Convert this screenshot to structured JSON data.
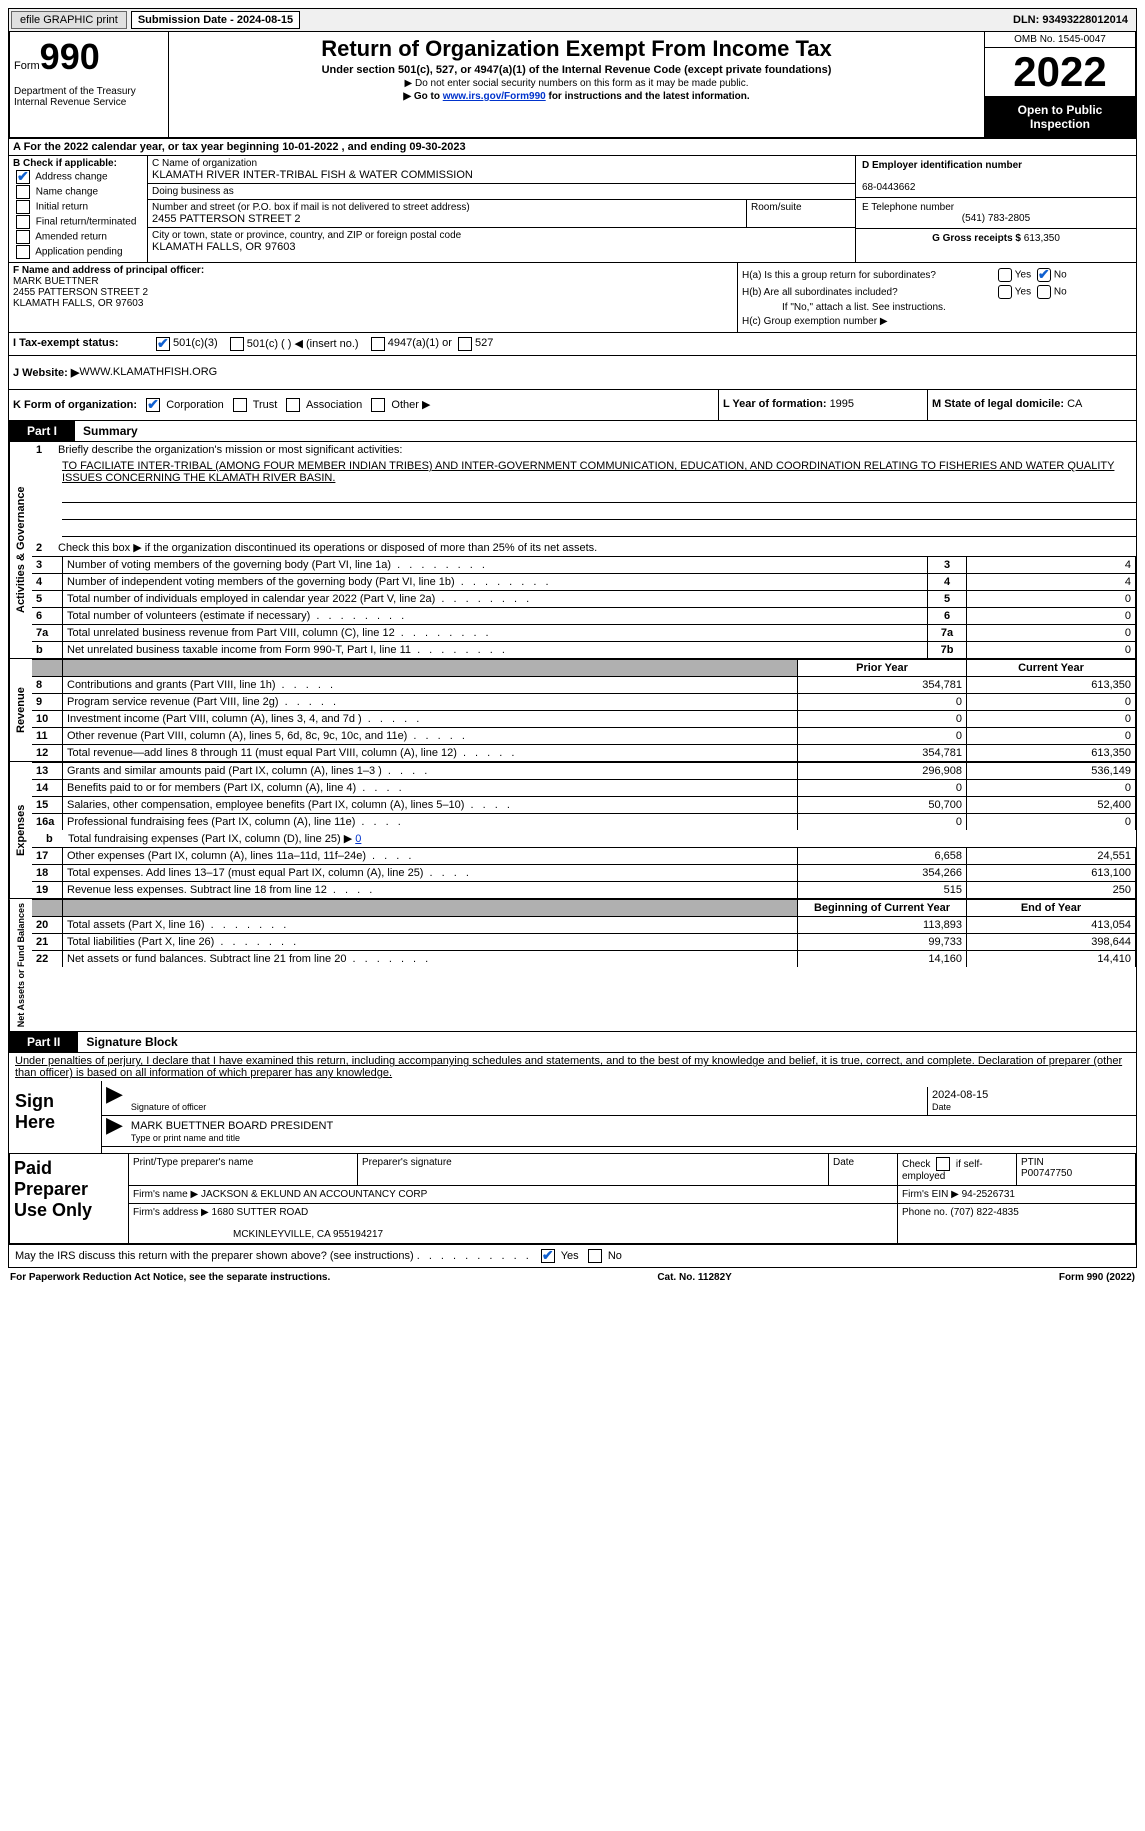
{
  "topbar": {
    "efile_label": "efile GRAPHIC print",
    "submission_label": "Submission Date - 2024-08-15",
    "dln": "DLN: 93493228012014"
  },
  "header": {
    "form_word": "Form",
    "form_number": "990",
    "dept": "Department of the Treasury Internal Revenue Service",
    "title": "Return of Organization Exempt From Income Tax",
    "sub1": "Under section 501(c), 527, or 4947(a)(1) of the Internal Revenue Code (except private foundations)",
    "sub2": "▶ Do not enter social security numbers on this form as it may be made public.",
    "sub3_pre": "▶ Go to ",
    "sub3_link": "www.irs.gov/Form990",
    "sub3_post": " for instructions and the latest information.",
    "omb": "OMB No. 1545-0047",
    "year": "2022",
    "open": "Open to Public Inspection"
  },
  "row_a": "A For the 2022 calendar year, or tax year beginning 10-01-2022     , and ending 09-30-2023",
  "section_b": {
    "b_label": "B Check if applicable:",
    "checks": {
      "addr": "Address change",
      "name": "Name change",
      "init": "Initial return",
      "final": "Final return/terminated",
      "amend": "Amended return",
      "app": "Application pending"
    },
    "c_name_label": "C Name of organization",
    "c_name": "KLAMATH RIVER INTER-TRIBAL FISH & WATER COMMISSION",
    "dba_label": "Doing business as",
    "dba": "",
    "addr_label": "Number and street (or P.O. box if mail is not delivered to street address)",
    "addr": "2455 PATTERSON STREET 2",
    "room_label": "Room/suite",
    "city_label": "City or town, state or province, country, and ZIP or foreign postal code",
    "city": "KLAMATH FALLS, OR  97603",
    "d_label": "D Employer identification number",
    "d_val": "68-0443662",
    "e_label": "E Telephone number",
    "e_val": "(541) 783-2805",
    "g_label": "G Gross receipts $",
    "g_val": "613,350"
  },
  "section_f": {
    "f_label": "F  Name and address of principal officer:",
    "f_name": "MARK BUETTNER",
    "f_addr1": "2455 PATTERSON STREET 2",
    "f_addr2": "KLAMATH FALLS, OR  97603",
    "ha": "H(a)  Is this a group return for subordinates?",
    "hb": "H(b)  Are all subordinates included?",
    "hb_note": "If \"No,\" attach a list. See instructions.",
    "hc": "H(c)  Group exemption number ▶",
    "yes": "Yes",
    "no": "No"
  },
  "row_i": {
    "label": "I    Tax-exempt status:",
    "o1": "501(c)(3)",
    "o2": "501(c) (  ) ◀ (insert no.)",
    "o3": "4947(a)(1) or",
    "o4": "527"
  },
  "row_j": {
    "label": "J   Website: ▶ ",
    "val": "WWW.KLAMATHFISH.ORG"
  },
  "row_k": {
    "k_label": "K Form of organization:",
    "k1": "Corporation",
    "k2": "Trust",
    "k3": "Association",
    "k4": "Other ▶",
    "l_label": "L Year of formation: ",
    "l_val": "1995",
    "m_label": "M State of legal domicile: ",
    "m_val": "CA"
  },
  "part1": {
    "num": "Part I",
    "title": "Summary",
    "l1_label": "Briefly describe the organization's mission or most significant activities:",
    "l1_text": "TO FACILIATE INTER-TRIBAL (AMONG FOUR MEMBER INDIAN TRIBES) AND INTER-GOVERNMENT COMMUNICATION, EDUCATION, AND COORDINATION RELATING TO FISHERIES AND WATER QUALITY ISSUES CONCERNING THE KLAMATH RIVER BASIN.",
    "l2": "Check this box ▶       if the organization discontinued its operations or disposed of more than 25% of its net assets.",
    "vtab1": "Activities & Governance",
    "lines_ag": [
      {
        "n": "3",
        "t": "Number of voting members of the governing body (Part VI, line 1a)",
        "box": "3",
        "v": "4"
      },
      {
        "n": "4",
        "t": "Number of independent voting members of the governing body (Part VI, line 1b)",
        "box": "4",
        "v": "4"
      },
      {
        "n": "5",
        "t": "Total number of individuals employed in calendar year 2022 (Part V, line 2a)",
        "box": "5",
        "v": "0"
      },
      {
        "n": "6",
        "t": "Total number of volunteers (estimate if necessary)",
        "box": "6",
        "v": "0"
      },
      {
        "n": "7a",
        "t": "Total unrelated business revenue from Part VIII, column (C), line 12",
        "box": "7a",
        "v": "0"
      },
      {
        "n": "b",
        "t": "Net unrelated business taxable income from Form 990-T, Part I, line 11",
        "box": "7b",
        "v": "0"
      }
    ],
    "vtab2": "Revenue",
    "prior_hdr": "Prior Year",
    "curr_hdr": "Current Year",
    "lines_rev": [
      {
        "n": "8",
        "t": "Contributions and grants (Part VIII, line 1h)",
        "p": "354,781",
        "c": "613,350"
      },
      {
        "n": "9",
        "t": "Program service revenue (Part VIII, line 2g)",
        "p": "0",
        "c": "0"
      },
      {
        "n": "10",
        "t": "Investment income (Part VIII, column (A), lines 3, 4, and 7d )",
        "p": "0",
        "c": "0"
      },
      {
        "n": "11",
        "t": "Other revenue (Part VIII, column (A), lines 5, 6d, 8c, 9c, 10c, and 11e)",
        "p": "0",
        "c": "0"
      },
      {
        "n": "12",
        "t": "Total revenue—add lines 8 through 11 (must equal Part VIII, column (A), line 12)",
        "p": "354,781",
        "c": "613,350"
      }
    ],
    "vtab3": "Expenses",
    "lines_exp": [
      {
        "n": "13",
        "t": "Grants and similar amounts paid (Part IX, column (A), lines 1–3 )",
        "p": "296,908",
        "c": "536,149"
      },
      {
        "n": "14",
        "t": "Benefits paid to or for members (Part IX, column (A), line 4)",
        "p": "0",
        "c": "0"
      },
      {
        "n": "15",
        "t": "Salaries, other compensation, employee benefits (Part IX, column (A), lines 5–10)",
        "p": "50,700",
        "c": "52,400"
      },
      {
        "n": "16a",
        "t": "Professional fundraising fees (Part IX, column (A), line 11e)",
        "p": "0",
        "c": "0"
      }
    ],
    "l16b_label": "Total fundraising expenses (Part IX, column (D), line 25) ▶",
    "l16b_val": "0",
    "lines_exp2": [
      {
        "n": "17",
        "t": "Other expenses (Part IX, column (A), lines 11a–11d, 11f–24e)",
        "p": "6,658",
        "c": "24,551"
      },
      {
        "n": "18",
        "t": "Total expenses. Add lines 13–17 (must equal Part IX, column (A), line 25)",
        "p": "354,266",
        "c": "613,100"
      },
      {
        "n": "19",
        "t": "Revenue less expenses. Subtract line 18 from line 12",
        "p": "515",
        "c": "250"
      }
    ],
    "vtab4": "Net Assets or Fund Balances",
    "beg_hdr": "Beginning of Current Year",
    "end_hdr": "End of Year",
    "lines_na": [
      {
        "n": "20",
        "t": "Total assets (Part X, line 16)",
        "p": "113,893",
        "c": "413,054"
      },
      {
        "n": "21",
        "t": "Total liabilities (Part X, line 26)",
        "p": "99,733",
        "c": "398,644"
      },
      {
        "n": "22",
        "t": "Net assets or fund balances. Subtract line 21 from line 20",
        "p": "14,160",
        "c": "14,410"
      }
    ]
  },
  "part2": {
    "num": "Part II",
    "title": "Signature Block",
    "declare": "Under penalties of perjury, I declare that I have examined this return, including accompanying schedules and statements, and to the best of my knowledge and belief, it is true, correct, and complete. Declaration of preparer (other than officer) is based on all information of which preparer has any knowledge.",
    "sign_here": "Sign Here",
    "sig_officer": "Signature of officer",
    "sig_date": "2024-08-15",
    "date_label": "Date",
    "officer_name": "MARK BUETTNER  BOARD PRESIDENT",
    "type_label": "Type or print name and title",
    "paid_label": "Paid Preparer Use Only",
    "prep_name_label": "Print/Type preparer's name",
    "prep_sig_label": "Preparer's signature",
    "prep_date_label": "Date",
    "check_se": "Check         if self-employed",
    "ptin_label": "PTIN",
    "ptin": "P00747750",
    "firm_name_label": "Firm's name     ▶",
    "firm_name": "JACKSON & EKLUND AN ACCOUNTANCY CORP",
    "firm_ein_label": "Firm's EIN ▶",
    "firm_ein": "94-2526731",
    "firm_addr_label": "Firm's address ▶",
    "firm_addr1": "1680 SUTTER ROAD",
    "firm_addr2": "MCKINLEYVILLE, CA  955194217",
    "phone_label": "Phone no.",
    "phone": "(707) 822-4835",
    "discuss": "May the IRS discuss this return with the preparer shown above? (see instructions)",
    "yes": "Yes",
    "no": "No"
  },
  "footer": {
    "left": "For Paperwork Reduction Act Notice, see the separate instructions.",
    "mid": "Cat. No. 11282Y",
    "right": "Form 990 (2022)"
  }
}
